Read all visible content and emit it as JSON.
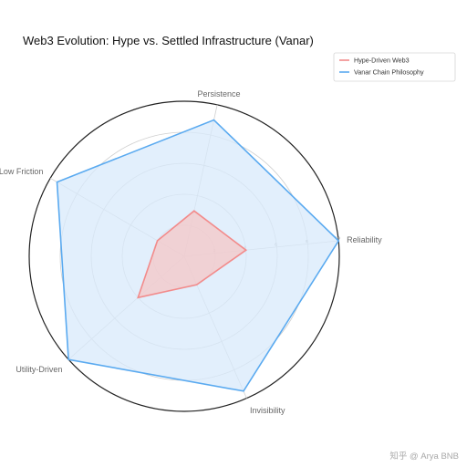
{
  "title": "Web3 Evolution: Hype vs. Settled Infrastructure (Vanar)",
  "watermark": "知乎 @ Arya BNB",
  "chart_data": {
    "type": "radar",
    "title": "Web3 Evolution: Hype vs. Settled Infrastructure (Vanar)",
    "axes": [
      "Reliability",
      "Persistence",
      "Low Friction",
      "Utility-Driven",
      "Invisibility"
    ],
    "rlim": [
      0,
      10
    ],
    "ticks": [
      2,
      4,
      6,
      8,
      10
    ],
    "grid": true,
    "legend_position": "top-right",
    "series": [
      {
        "name": "Hype-Driven Web3",
        "values": [
          4,
          3,
          2,
          4,
          2
        ],
        "color": "#f28b8b",
        "fill": "#f4c7c7"
      },
      {
        "name": "Vanar Chain Philosophy",
        "values": [
          10,
          9,
          9.5,
          10,
          9.5
        ],
        "color": "#5aaaf0",
        "fill": "#d8e9fb"
      }
    ]
  }
}
